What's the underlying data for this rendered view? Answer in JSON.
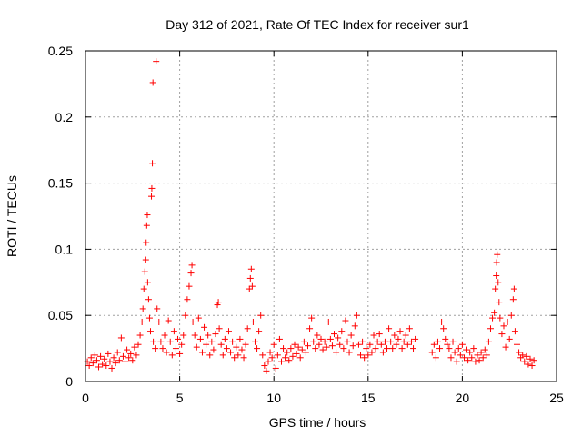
{
  "chart_data": {
    "type": "scatter",
    "title": "Day 312 of 2021, Rate Of TEC Index for receiver sur1",
    "xlabel": "GPS time / hours",
    "ylabel": "ROTI / TECUs",
    "xlim": [
      0,
      25
    ],
    "ylim": [
      0,
      0.25
    ],
    "xticks": [
      0,
      5,
      10,
      15,
      20,
      25
    ],
    "xtick_labels": [
      "0",
      "5",
      "10",
      "15",
      "20",
      "25"
    ],
    "yticks": [
      0,
      0.05,
      0.1,
      0.15,
      0.2,
      0.25
    ],
    "ytick_labels": [
      "0",
      "0.05",
      "0.1",
      "0.15",
      "0.2",
      "0.25"
    ],
    "grid": true,
    "marker": "+",
    "color": "#ff0000",
    "series": [
      {
        "name": "ROTI",
        "points": [
          [
            0.1,
            0.015
          ],
          [
            0.2,
            0.012
          ],
          [
            0.3,
            0.018
          ],
          [
            0.4,
            0.014
          ],
          [
            0.5,
            0.02
          ],
          [
            0.6,
            0.016
          ],
          [
            0.7,
            0.011
          ],
          [
            0.8,
            0.019
          ],
          [
            0.9,
            0.013
          ],
          [
            1.0,
            0.017
          ],
          [
            1.1,
            0.012
          ],
          [
            1.2,
            0.021
          ],
          [
            1.3,
            0.015
          ],
          [
            1.4,
            0.01
          ],
          [
            1.5,
            0.018
          ],
          [
            1.6,
            0.014
          ],
          [
            1.7,
            0.022
          ],
          [
            1.8,
            0.016
          ],
          [
            1.9,
            0.033
          ],
          [
            2.0,
            0.019
          ],
          [
            2.1,
            0.015
          ],
          [
            2.2,
            0.024
          ],
          [
            2.3,
            0.018
          ],
          [
            2.4,
            0.021
          ],
          [
            2.5,
            0.016
          ],
          [
            2.6,
            0.026
          ],
          [
            2.7,
            0.02
          ],
          [
            2.8,
            0.028
          ],
          [
            2.9,
            0.035
          ],
          [
            3.0,
            0.045
          ],
          [
            3.05,
            0.055
          ],
          [
            3.1,
            0.07
          ],
          [
            3.15,
            0.083
          ],
          [
            3.2,
            0.092
          ],
          [
            3.22,
            0.105
          ],
          [
            3.25,
            0.118
          ],
          [
            3.28,
            0.126
          ],
          [
            3.3,
            0.075
          ],
          [
            3.35,
            0.062
          ],
          [
            3.4,
            0.048
          ],
          [
            3.45,
            0.038
          ],
          [
            3.5,
            0.14
          ],
          [
            3.52,
            0.146
          ],
          [
            3.55,
            0.165
          ],
          [
            3.58,
            0.226
          ],
          [
            3.6,
            0.03
          ],
          [
            3.7,
            0.025
          ],
          [
            3.75,
            0.242
          ],
          [
            3.8,
            0.055
          ],
          [
            3.9,
            0.045
          ],
          [
            4.0,
            0.03
          ],
          [
            4.1,
            0.025
          ],
          [
            4.2,
            0.035
          ],
          [
            4.3,
            0.022
          ],
          [
            4.4,
            0.046
          ],
          [
            4.5,
            0.03
          ],
          [
            4.6,
            0.02
          ],
          [
            4.7,
            0.038
          ],
          [
            4.8,
            0.025
          ],
          [
            4.9,
            0.032
          ],
          [
            5.0,
            0.021
          ],
          [
            5.1,
            0.028
          ],
          [
            5.2,
            0.035
          ],
          [
            5.3,
            0.05
          ],
          [
            5.4,
            0.062
          ],
          [
            5.5,
            0.072
          ],
          [
            5.6,
            0.082
          ],
          [
            5.65,
            0.088
          ],
          [
            5.7,
            0.045
          ],
          [
            5.8,
            0.035
          ],
          [
            5.9,
            0.026
          ],
          [
            6.0,
            0.048
          ],
          [
            6.1,
            0.032
          ],
          [
            6.2,
            0.022
          ],
          [
            6.3,
            0.041
          ],
          [
            6.4,
            0.028
          ],
          [
            6.5,
            0.035
          ],
          [
            6.6,
            0.02
          ],
          [
            6.7,
            0.03
          ],
          [
            6.8,
            0.024
          ],
          [
            6.9,
            0.036
          ],
          [
            7.0,
            0.058
          ],
          [
            7.05,
            0.06
          ],
          [
            7.1,
            0.04
          ],
          [
            7.2,
            0.028
          ],
          [
            7.3,
            0.02
          ],
          [
            7.4,
            0.032
          ],
          [
            7.5,
            0.025
          ],
          [
            7.6,
            0.038
          ],
          [
            7.7,
            0.022
          ],
          [
            7.8,
            0.03
          ],
          [
            7.9,
            0.018
          ],
          [
            8.0,
            0.026
          ],
          [
            8.1,
            0.02
          ],
          [
            8.2,
            0.032
          ],
          [
            8.3,
            0.024
          ],
          [
            8.4,
            0.018
          ],
          [
            8.5,
            0.028
          ],
          [
            8.6,
            0.04
          ],
          [
            8.7,
            0.07
          ],
          [
            8.75,
            0.078
          ],
          [
            8.8,
            0.085
          ],
          [
            8.85,
            0.072
          ],
          [
            8.9,
            0.045
          ],
          [
            9.0,
            0.03
          ],
          [
            9.1,
            0.025
          ],
          [
            9.2,
            0.038
          ],
          [
            9.3,
            0.05
          ],
          [
            9.4,
            0.02
          ],
          [
            9.5,
            0.012
          ],
          [
            9.6,
            0.008
          ],
          [
            9.7,
            0.015
          ],
          [
            9.8,
            0.022
          ],
          [
            9.9,
            0.018
          ],
          [
            10.0,
            0.028
          ],
          [
            10.1,
            0.01
          ],
          [
            10.2,
            0.02
          ],
          [
            10.3,
            0.032
          ],
          [
            10.4,
            0.015
          ],
          [
            10.5,
            0.025
          ],
          [
            10.6,
            0.018
          ],
          [
            10.7,
            0.022
          ],
          [
            10.8,
            0.016
          ],
          [
            10.9,
            0.025
          ],
          [
            11.0,
            0.019
          ],
          [
            11.1,
            0.028
          ],
          [
            11.2,
            0.021
          ],
          [
            11.3,
            0.026
          ],
          [
            11.4,
            0.018
          ],
          [
            11.5,
            0.024
          ],
          [
            11.6,
            0.03
          ],
          [
            11.7,
            0.022
          ],
          [
            11.8,
            0.027
          ],
          [
            11.9,
            0.04
          ],
          [
            12.0,
            0.048
          ],
          [
            12.1,
            0.03
          ],
          [
            12.2,
            0.025
          ],
          [
            12.3,
            0.035
          ],
          [
            12.4,
            0.028
          ],
          [
            12.5,
            0.032
          ],
          [
            12.6,
            0.024
          ],
          [
            12.7,
            0.03
          ],
          [
            12.8,
            0.026
          ],
          [
            12.9,
            0.045
          ],
          [
            13.0,
            0.032
          ],
          [
            13.1,
            0.027
          ],
          [
            13.2,
            0.036
          ],
          [
            13.3,
            0.022
          ],
          [
            13.4,
            0.033
          ],
          [
            13.5,
            0.028
          ],
          [
            13.6,
            0.038
          ],
          [
            13.7,
            0.025
          ],
          [
            13.8,
            0.046
          ],
          [
            13.9,
            0.03
          ],
          [
            14.0,
            0.022
          ],
          [
            14.1,
            0.035
          ],
          [
            14.2,
            0.027
          ],
          [
            14.3,
            0.042
          ],
          [
            14.4,
            0.05
          ],
          [
            14.5,
            0.028
          ],
          [
            14.6,
            0.02
          ],
          [
            14.7,
            0.03
          ],
          [
            14.8,
            0.018
          ],
          [
            14.9,
            0.025
          ],
          [
            15.0,
            0.02
          ],
          [
            15.1,
            0.028
          ],
          [
            15.2,
            0.022
          ],
          [
            15.3,
            0.035
          ],
          [
            15.4,
            0.025
          ],
          [
            15.5,
            0.03
          ],
          [
            15.6,
            0.036
          ],
          [
            15.7,
            0.028
          ],
          [
            15.8,
            0.022
          ],
          [
            15.9,
            0.03
          ],
          [
            16.0,
            0.025
          ],
          [
            16.1,
            0.04
          ],
          [
            16.2,
            0.03
          ],
          [
            16.3,
            0.025
          ],
          [
            16.4,
            0.035
          ],
          [
            16.5,
            0.028
          ],
          [
            16.6,
            0.032
          ],
          [
            16.7,
            0.038
          ],
          [
            16.8,
            0.025
          ],
          [
            16.9,
            0.03
          ],
          [
            17.0,
            0.035
          ],
          [
            17.1,
            0.028
          ],
          [
            17.2,
            0.04
          ],
          [
            17.3,
            0.03
          ],
          [
            17.4,
            0.025
          ],
          [
            17.5,
            0.032
          ],
          [
            18.4,
            0.022
          ],
          [
            18.5,
            0.028
          ],
          [
            18.6,
            0.018
          ],
          [
            18.7,
            0.03
          ],
          [
            18.8,
            0.025
          ],
          [
            18.9,
            0.045
          ],
          [
            19.0,
            0.04
          ],
          [
            19.1,
            0.032
          ],
          [
            19.2,
            0.028
          ],
          [
            19.3,
            0.025
          ],
          [
            19.4,
            0.018
          ],
          [
            19.5,
            0.03
          ],
          [
            19.6,
            0.022
          ],
          [
            19.7,
            0.015
          ],
          [
            19.8,
            0.025
          ],
          [
            19.9,
            0.02
          ],
          [
            20.0,
            0.028
          ],
          [
            20.1,
            0.018
          ],
          [
            20.2,
            0.024
          ],
          [
            20.3,
            0.016
          ],
          [
            20.4,
            0.022
          ],
          [
            20.5,
            0.018
          ],
          [
            20.6,
            0.025
          ],
          [
            20.7,
            0.015
          ],
          [
            20.8,
            0.02
          ],
          [
            20.9,
            0.016
          ],
          [
            21.0,
            0.022
          ],
          [
            21.1,
            0.018
          ],
          [
            21.2,
            0.024
          ],
          [
            21.3,
            0.02
          ],
          [
            21.4,
            0.03
          ],
          [
            21.5,
            0.04
          ],
          [
            21.6,
            0.048
          ],
          [
            21.7,
            0.052
          ],
          [
            21.75,
            0.07
          ],
          [
            21.8,
            0.08
          ],
          [
            21.82,
            0.09
          ],
          [
            21.85,
            0.096
          ],
          [
            21.9,
            0.075
          ],
          [
            21.95,
            0.06
          ],
          [
            22.0,
            0.048
          ],
          [
            22.1,
            0.036
          ],
          [
            22.2,
            0.042
          ],
          [
            22.3,
            0.026
          ],
          [
            22.4,
            0.045
          ],
          [
            22.5,
            0.032
          ],
          [
            22.6,
            0.05
          ],
          [
            22.7,
            0.062
          ],
          [
            22.75,
            0.07
          ],
          [
            22.8,
            0.038
          ],
          [
            22.9,
            0.028
          ],
          [
            23.0,
            0.022
          ],
          [
            23.1,
            0.018
          ],
          [
            23.2,
            0.02
          ],
          [
            23.3,
            0.015
          ],
          [
            23.4,
            0.019
          ],
          [
            23.5,
            0.013
          ],
          [
            23.6,
            0.017
          ],
          [
            23.7,
            0.012
          ],
          [
            23.8,
            0.016
          ]
        ]
      }
    ]
  }
}
